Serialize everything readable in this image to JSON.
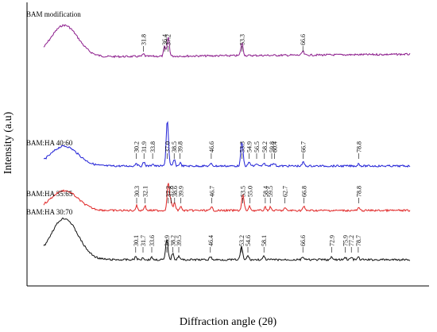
{
  "chart_data": {
    "type": "line",
    "xlabel": "Diffraction angle (2θ)",
    "ylabel": "Intensity (a.u)",
    "xlim": [
      10,
      90
    ],
    "series": [
      {
        "name": "BAM modification",
        "color": "#8b1a8b",
        "peaks": [
          {
            "x": 31.8,
            "label": "31.8",
            "h": 3
          },
          {
            "x": 36.4,
            "label": "36.4",
            "h": 12
          },
          {
            "x": 37.2,
            "label": "37.2",
            "h": 24
          },
          {
            "x": 53.3,
            "label": "53.3",
            "h": 16
          },
          {
            "x": 66.6,
            "label": "66.6",
            "h": 5
          }
        ]
      },
      {
        "name": "BAM:HA 40:60",
        "color": "#1f1fd6",
        "peaks": [
          {
            "x": 30.2,
            "label": "30.2",
            "h": 4
          },
          {
            "x": 31.9,
            "label": "31.9",
            "h": 5
          },
          {
            "x": 33.8,
            "label": "33.8",
            "h": 3
          },
          {
            "x": 37.0,
            "label": "37.0",
            "h": 58
          },
          {
            "x": 38.5,
            "label": "38.5",
            "h": 8
          },
          {
            "x": 39.8,
            "label": "39.8",
            "h": 4
          },
          {
            "x": 46.6,
            "label": "46.6",
            "h": 3
          },
          {
            "x": 53.3,
            "label": "53.3",
            "h": 30
          },
          {
            "x": 54.9,
            "label": "54.9",
            "h": 5
          },
          {
            "x": 56.5,
            "label": "56.5",
            "h": 3
          },
          {
            "x": 58.2,
            "label": "58.2",
            "h": 3
          },
          {
            "x": 59.8,
            "label": "59.8",
            "h": 3
          },
          {
            "x": 60.4,
            "label": "60.4",
            "h": 3
          },
          {
            "x": 66.7,
            "label": "66.7",
            "h": 5
          },
          {
            "x": 78.8,
            "label": "78.8",
            "h": 3
          }
        ]
      },
      {
        "name": "BAM:HA 35:65",
        "color": "#e02424",
        "peaks": [
          {
            "x": 30.3,
            "label": "30.3",
            "h": 6
          },
          {
            "x": 32.1,
            "label": "32.1",
            "h": 6
          },
          {
            "x": 37.2,
            "label": "37.2",
            "h": 35
          },
          {
            "x": 37.8,
            "label": "37.8",
            "h": 12
          },
          {
            "x": 38.6,
            "label": "38.6",
            "h": 10
          },
          {
            "x": 39.9,
            "label": "39.9",
            "h": 5
          },
          {
            "x": 46.7,
            "label": "46.7",
            "h": 4
          },
          {
            "x": 53.5,
            "label": "53.5",
            "h": 20
          },
          {
            "x": 55.0,
            "label": "55.0",
            "h": 5
          },
          {
            "x": 58.4,
            "label": "58.4",
            "h": 4
          },
          {
            "x": 59.5,
            "label": "59.5",
            "h": 4
          },
          {
            "x": 62.7,
            "label": "62.7",
            "h": 3
          },
          {
            "x": 66.8,
            "label": "66.8",
            "h": 5
          },
          {
            "x": 78.8,
            "label": "78.8",
            "h": 3
          }
        ]
      },
      {
        "name": "BAM:HA 30:70",
        "color": "#111111",
        "peaks": [
          {
            "x": 30.1,
            "label": "30.1",
            "h": 4
          },
          {
            "x": 31.7,
            "label": "31.7",
            "h": 3
          },
          {
            "x": 33.6,
            "label": "33.6",
            "h": 3
          },
          {
            "x": 36.9,
            "label": "36.9",
            "h": 26
          },
          {
            "x": 38.2,
            "label": "38.2",
            "h": 9
          },
          {
            "x": 39.5,
            "label": "39.5",
            "h": 5
          },
          {
            "x": 46.4,
            "label": "46.4",
            "h": 4
          },
          {
            "x": 53.2,
            "label": "53.2",
            "h": 16
          },
          {
            "x": 54.6,
            "label": "54.6",
            "h": 5
          },
          {
            "x": 58.1,
            "label": "58.1",
            "h": 4
          },
          {
            "x": 66.6,
            "label": "66.6",
            "h": 4
          },
          {
            "x": 72.9,
            "label": "72.9",
            "h": 3
          },
          {
            "x": 75.9,
            "label": "75.9",
            "h": 3
          },
          {
            "x": 77.2,
            "label": "77.2",
            "h": 3
          },
          {
            "x": 78.7,
            "label": "78.7",
            "h": 3
          }
        ]
      }
    ]
  }
}
